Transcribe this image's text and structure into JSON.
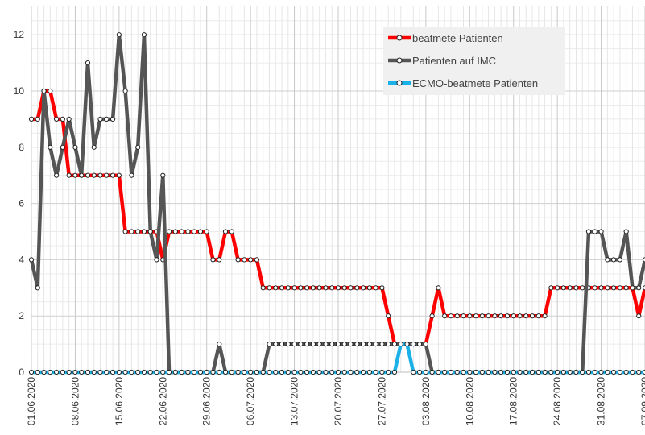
{
  "chart_data": {
    "type": "line",
    "title": "",
    "xlabel": "",
    "ylabel": "",
    "ylim": [
      0,
      12.5
    ],
    "yticks": [
      0,
      2,
      4,
      6,
      8,
      10,
      12
    ],
    "grid": true,
    "legend_position": "top-right",
    "x_start": "01.06.2020",
    "x_end": "07.09.2020",
    "x_tick_labels": [
      "01.06.2020",
      "08.06.2020",
      "15.06.2020",
      "22.06.2020",
      "29.06.2020",
      "06.07.2020",
      "13.07.2020",
      "20.07.2020",
      "27.07.2020",
      "03.08.2020",
      "10.08.2020",
      "17.08.2020",
      "24.08.2020",
      "31.08.2020",
      "07.09.2020"
    ],
    "series": [
      {
        "name": "beatmete Patienten",
        "color": "#ff0000",
        "values": [
          9,
          9,
          10,
          10,
          9,
          9,
          7,
          7,
          7,
          7,
          7,
          7,
          7,
          7,
          7,
          5,
          5,
          5,
          5,
          5,
          5,
          4,
          5,
          5,
          5,
          5,
          5,
          5,
          5,
          4,
          4,
          5,
          5,
          4,
          4,
          4,
          4,
          3,
          3,
          3,
          3,
          3,
          3,
          3,
          3,
          3,
          3,
          3,
          3,
          3,
          3,
          3,
          3,
          3,
          3,
          3,
          3,
          2,
          1,
          1,
          1,
          1,
          1,
          1,
          2,
          3,
          2,
          2,
          2,
          2,
          2,
          2,
          2,
          2,
          2,
          2,
          2,
          2,
          2,
          2,
          2,
          2,
          2,
          3,
          3,
          3,
          3,
          3,
          3,
          3,
          3,
          3,
          3,
          3,
          3,
          3,
          3,
          2,
          3
        ]
      },
      {
        "name": "Patienten auf IMC",
        "color": "#555555",
        "values": [
          4,
          3,
          10,
          8,
          7,
          8,
          9,
          8,
          7,
          11,
          8,
          9,
          9,
          9,
          12,
          10,
          7,
          8,
          12,
          5,
          4,
          7,
          0,
          0,
          0,
          0,
          0,
          0,
          0,
          0,
          1,
          0,
          0,
          0,
          0,
          0,
          0,
          0,
          1,
          1,
          1,
          1,
          1,
          1,
          1,
          1,
          1,
          1,
          1,
          1,
          1,
          1,
          1,
          1,
          1,
          1,
          1,
          1,
          1,
          1,
          1,
          1,
          1,
          1,
          0,
          0,
          0,
          0,
          0,
          0,
          0,
          0,
          0,
          0,
          0,
          0,
          0,
          0,
          0,
          0,
          0,
          0,
          0,
          0,
          0,
          0,
          0,
          0,
          0,
          5,
          5,
          5,
          4,
          4,
          4,
          5,
          3,
          3,
          4
        ]
      },
      {
        "name": "ECMO-beatmete Patienten",
        "color": "#1ab0e8",
        "values": [
          0,
          0,
          0,
          0,
          0,
          0,
          0,
          0,
          0,
          0,
          0,
          0,
          0,
          0,
          0,
          0,
          0,
          0,
          0,
          0,
          0,
          0,
          0,
          0,
          0,
          0,
          0,
          0,
          0,
          0,
          0,
          0,
          0,
          0,
          0,
          0,
          0,
          0,
          0,
          0,
          0,
          0,
          0,
          0,
          0,
          0,
          0,
          0,
          0,
          0,
          0,
          0,
          0,
          0,
          0,
          0,
          0,
          0,
          0,
          1,
          1,
          0,
          0,
          0,
          0,
          0,
          0,
          0,
          0,
          0,
          0,
          0,
          0,
          0,
          0,
          0,
          0,
          0,
          0,
          0,
          0,
          0,
          0,
          0,
          0,
          0,
          0,
          0,
          0,
          0,
          0,
          0,
          0,
          0,
          0,
          0,
          0,
          0,
          0
        ]
      }
    ]
  }
}
